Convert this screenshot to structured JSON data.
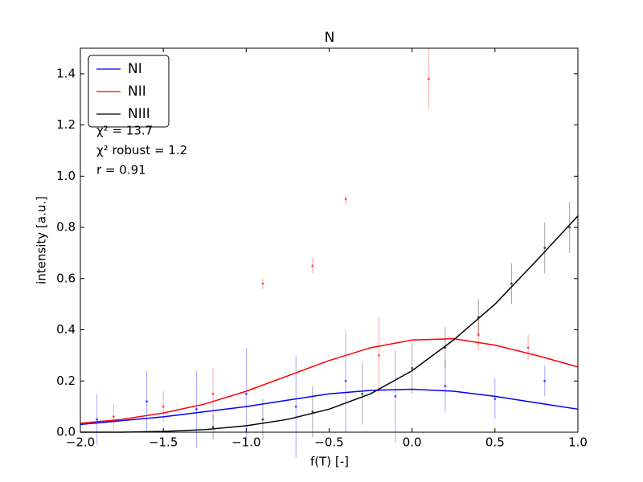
{
  "chart_data": {
    "type": "line",
    "title": "N",
    "xlabel": "f(T) [-]",
    "ylabel": "intensity [a.u.]",
    "xlim": [
      -2.0,
      1.0
    ],
    "ylim": [
      0.0,
      1.5
    ],
    "xticks": [
      {
        "value": -2.0,
        "label": "−2.0"
      },
      {
        "value": -1.5,
        "label": "−1.5"
      },
      {
        "value": -1.0,
        "label": "−1.0"
      },
      {
        "value": -0.5,
        "label": "−0.5"
      },
      {
        "value": 0.0,
        "label": "0.0"
      },
      0.5,
      {
        "value": 1.0,
        "label": "1.0"
      }
    ],
    "yticks": [
      {
        "value": 0.0,
        "label": "0.0"
      },
      0.2,
      0.4,
      0.6,
      0.8,
      {
        "value": 1.0,
        "label": "1.0"
      },
      1.2,
      1.4
    ],
    "legend": "upper left",
    "annotations": [
      "χ²  = 13.7",
      "χ²  robust = 1.2",
      "r =  0.91"
    ],
    "series": [
      {
        "name": "NI",
        "color": "#0000ff",
        "x": [
          -2.0,
          -1.75,
          -1.5,
          -1.25,
          -1.0,
          -0.75,
          -0.5,
          -0.25,
          0.0,
          0.25,
          0.5,
          0.75,
          1.0
        ],
        "values": [
          0.03,
          0.045,
          0.06,
          0.08,
          0.1,
          0.125,
          0.15,
          0.163,
          0.168,
          0.16,
          0.14,
          0.115,
          0.09
        ],
        "samples": {
          "x": [
            -1.9,
            -1.6,
            -1.3,
            -1.0,
            -0.7,
            -0.4,
            -0.1,
            0.2,
            0.5,
            0.8
          ],
          "values": [
            0.05,
            0.12,
            0.09,
            0.15,
            0.1,
            0.2,
            0.14,
            0.18,
            0.13,
            0.2
          ],
          "errors": [
            0.1,
            0.12,
            0.15,
            0.18,
            0.2,
            0.2,
            0.18,
            0.1,
            0.08,
            0.06
          ]
        }
      },
      {
        "name": "NII",
        "color": "#ff0000",
        "x": [
          -2.0,
          -1.75,
          -1.5,
          -1.25,
          -1.0,
          -0.75,
          -0.5,
          -0.25,
          0.0,
          0.25,
          0.5,
          0.75,
          1.0
        ],
        "values": [
          0.035,
          0.05,
          0.075,
          0.11,
          0.16,
          0.22,
          0.28,
          0.33,
          0.36,
          0.365,
          0.34,
          0.3,
          0.255
        ],
        "samples": {
          "x": [
            -1.8,
            -1.5,
            -1.2,
            -0.9,
            -0.6,
            -0.4,
            -0.2,
            0.1,
            0.4,
            0.7
          ],
          "values": [
            0.06,
            0.1,
            0.15,
            0.58,
            0.65,
            0.91,
            0.3,
            1.38,
            0.38,
            0.33
          ],
          "errors": [
            0.05,
            0.06,
            0.1,
            0.02,
            0.03,
            0.02,
            0.15,
            0.12,
            0.06,
            0.05
          ]
        }
      },
      {
        "name": "NIII",
        "color": "#000000",
        "x": [
          -2.0,
          -1.75,
          -1.5,
          -1.25,
          -1.0,
          -0.75,
          -0.5,
          -0.25,
          0.0,
          0.25,
          0.5,
          0.75,
          1.0
        ],
        "values": [
          0.0,
          0.0,
          0.003,
          0.01,
          0.025,
          0.05,
          0.09,
          0.15,
          0.24,
          0.36,
          0.5,
          0.67,
          0.845
        ],
        "samples": {
          "x": [
            -1.2,
            -0.9,
            -0.6,
            -0.3,
            0.0,
            0.2,
            0.4,
            0.6,
            0.8,
            0.95
          ],
          "values": [
            0.02,
            0.05,
            0.08,
            0.15,
            0.25,
            0.33,
            0.45,
            0.58,
            0.72,
            0.8
          ],
          "errors": [
            0.05,
            0.08,
            0.1,
            0.12,
            0.1,
            0.08,
            0.07,
            0.08,
            0.1,
            0.1
          ]
        }
      }
    ]
  }
}
